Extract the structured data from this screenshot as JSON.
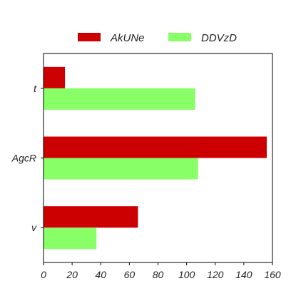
{
  "chart_data": {
    "type": "bar",
    "orientation": "horizontal",
    "categories": [
      "t",
      "AgcR",
      "v"
    ],
    "series": [
      {
        "name": "AkUNe",
        "color": "#cc0000",
        "values": [
          15,
          156,
          66
        ]
      },
      {
        "name": "DDVzD",
        "color": "#88ff66",
        "values": [
          106,
          108,
          37
        ]
      }
    ],
    "x_ticks": [
      0,
      20,
      40,
      60,
      80,
      100,
      120,
      140,
      160
    ],
    "xlim": [
      0,
      160
    ],
    "title": "",
    "xlabel": "",
    "ylabel": "",
    "legend": "top-center",
    "grid": false
  }
}
